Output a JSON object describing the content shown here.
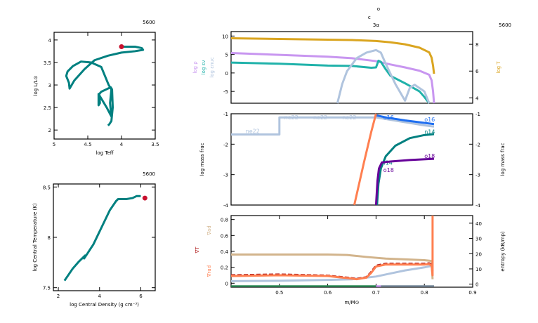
{
  "model_number": "5600",
  "chart_data": [
    {
      "id": "hr",
      "type": "line",
      "xlabel": "log Teff",
      "ylabel": "log L/L⊙",
      "xlim": [
        5,
        3.5
      ],
      "ylim": [
        1.8,
        4.17
      ],
      "xticks": [
        5,
        4.5,
        4,
        3.5
      ],
      "xticklabels": [
        "5",
        "4.5",
        "4",
        "3.5"
      ],
      "yticks": [
        2,
        2.5,
        3,
        3.5,
        4
      ],
      "yticklabels": [
        "2",
        "2.5",
        "3",
        "3.5",
        "4"
      ],
      "color": "#008080",
      "x": [
        4.2,
        4.18,
        4.15,
        4.13,
        4.14,
        4.16,
        4.3,
        4.33,
        4.32,
        4.34,
        4.34,
        4.22,
        4.15,
        4.17,
        4.15,
        4.19,
        4.3,
        4.45,
        4.6,
        4.72,
        4.8,
        4.82,
        4.78,
        4.77,
        4.7,
        4.55,
        4.4,
        4.2,
        4.0,
        3.8,
        3.68,
        3.7,
        3.8,
        4.0
      ],
      "y": [
        2.1,
        2.13,
        2.2,
        2.5,
        2.9,
        2.95,
        2.85,
        2.8,
        2.6,
        2.55,
        2.8,
        2.5,
        2.3,
        2.6,
        2.9,
        3.0,
        3.4,
        3.5,
        3.52,
        3.42,
        3.3,
        3.2,
        3.05,
        2.92,
        3.1,
        3.35,
        3.55,
        3.65,
        3.72,
        3.75,
        3.78,
        3.82,
        3.85,
        3.85
      ],
      "marker": {
        "x": 4.0,
        "y": 3.85,
        "color": "#c8102e"
      }
    },
    {
      "id": "center",
      "type": "line",
      "xlabel": "log Central Density (g cm⁻³)",
      "ylabel": "log Central Temperature (K)",
      "xlim": [
        1.76,
        6.7
      ],
      "ylim": [
        7.47,
        8.53
      ],
      "xticks": [
        2,
        4,
        6
      ],
      "xticklabels": [
        "2",
        "4",
        "6"
      ],
      "yticks": [
        7.5,
        8,
        8.5
      ],
      "yticklabels": [
        "7.5",
        "8",
        "8.5"
      ],
      "color": "#008080",
      "x": [
        2.3,
        2.7,
        3.0,
        3.2,
        3.3,
        3.25,
        3.35,
        3.7,
        4.1,
        4.5,
        4.8,
        4.9,
        5.3,
        5.6,
        5.8,
        6.0
      ],
      "y": [
        7.57,
        7.69,
        7.76,
        7.8,
        7.82,
        7.79,
        7.82,
        7.93,
        8.1,
        8.27,
        8.36,
        8.38,
        8.38,
        8.39,
        8.41,
        8.41
      ],
      "marker": {
        "x": 6.2,
        "y": 8.39,
        "color": "#c8102e"
      }
    },
    {
      "id": "profile-top",
      "type": "line",
      "xlim": [
        0.4,
        0.9
      ],
      "ylim": [
        -8.2,
        11.2
      ],
      "y2lim": [
        3.6,
        8.95
      ],
      "yticks": [
        -5,
        0,
        5,
        10
      ],
      "yticklabels": [
        "-5",
        "0",
        "5",
        "10"
      ],
      "y2ticks": [
        4,
        6,
        8
      ],
      "y2ticklabels": [
        "4",
        "6",
        "8"
      ],
      "ylabels": [
        {
          "text": "log ρ",
          "color": "#c896f0"
        },
        {
          "text": "log εν",
          "color": "#20b2aa"
        },
        {
          "text": "log εnuc",
          "color": "#b0c4de"
        }
      ],
      "y2label": {
        "text": "log T",
        "color": "#daa520"
      },
      "burning_labels": [
        {
          "text": "o",
          "x": 0.7
        },
        {
          "text": "c",
          "x": 0.69
        },
        {
          "text": "3α",
          "x": 0.7
        }
      ],
      "series": [
        {
          "axis": "y2",
          "color": "#daa520",
          "x": [
            0.4,
            0.5,
            0.6,
            0.65,
            0.7,
            0.73,
            0.76,
            0.79,
            0.81,
            0.815,
            0.818,
            0.82
          ],
          "y": [
            8.45,
            8.4,
            8.35,
            8.32,
            8.25,
            8.15,
            8.0,
            7.75,
            7.4,
            7.0,
            6.4,
            5.8
          ]
        },
        {
          "axis": "y",
          "color": "#c896f0",
          "x": [
            0.4,
            0.5,
            0.6,
            0.65,
            0.7,
            0.73,
            0.76,
            0.79,
            0.81,
            0.815,
            0.818,
            0.82
          ],
          "y": [
            5.4,
            4.9,
            4.4,
            4.0,
            3.2,
            2.3,
            1.5,
            0.6,
            -0.5,
            -2,
            -5,
            -8.2
          ]
        },
        {
          "axis": "y",
          "color": "#20b2aa",
          "x": [
            0.4,
            0.5,
            0.6,
            0.65,
            0.69,
            0.7,
            0.705,
            0.71,
            0.72,
            0.73,
            0.76,
            0.79,
            0.8,
            0.81
          ],
          "y": [
            2.8,
            2.5,
            2.0,
            1.9,
            1.4,
            1.5,
            3.3,
            3.0,
            1.0,
            -0.8,
            -2.8,
            -5,
            -6.5,
            -8.2
          ]
        },
        {
          "axis": "y",
          "color": "#b0c4de",
          "x": [
            0.62,
            0.63,
            0.64,
            0.66,
            0.68,
            0.7,
            0.71,
            0.72,
            0.74,
            0.76,
            0.77,
            0.78,
            0.8,
            0.81
          ],
          "y": [
            -8.2,
            -3,
            0.5,
            4,
            5.5,
            6.2,
            5.5,
            2.5,
            -3,
            -7.5,
            -4,
            -3.2,
            -5,
            -8.2
          ]
        }
      ]
    },
    {
      "id": "profile-middle",
      "type": "line",
      "xlim": [
        0.4,
        0.9
      ],
      "ylim": [
        -4,
        -1
      ],
      "yticks": [
        -4,
        -3,
        -2,
        -1
      ],
      "yticklabels": [
        "-4",
        "-3",
        "-2",
        "-1"
      ],
      "ylabel": "log mass frac",
      "y2label": "log mass frac",
      "series": [
        {
          "name": "ne22",
          "color": "#b0c4de",
          "x": [
            0.4,
            0.5,
            0.5,
            0.6,
            0.7,
            0.75,
            0.8,
            0.82
          ],
          "y": [
            -1.68,
            -1.68,
            -1.12,
            -1.12,
            -1.12,
            -1.25,
            -1.38,
            -1.42
          ],
          "labels": [
            0.43,
            0.51,
            0.57,
            0.63
          ]
        },
        {
          "name": "o16",
          "color": "#1e6ef0",
          "x": [
            0.7,
            0.72,
            0.76,
            0.8,
            0.82
          ],
          "y": [
            -1.05,
            -1.12,
            -1.22,
            -1.3,
            -1.34
          ],
          "labels": [
            0.715,
            0.8
          ]
        },
        {
          "name": "",
          "color": "#ff7f50",
          "x": [
            0.655,
            0.665,
            0.675,
            0.69,
            0.7
          ],
          "y": [
            -4,
            -3.3,
            -2.6,
            -1.6,
            -1
          ]
        },
        {
          "name": "n14",
          "color": "#008080",
          "x": [
            0.702,
            0.705,
            0.71,
            0.72,
            0.74,
            0.77,
            0.8,
            0.82
          ],
          "y": [
            -4,
            -3.3,
            -2.8,
            -2.4,
            -2.05,
            -1.8,
            -1.7,
            -1.67
          ],
          "labels": [
            0.712,
            0.8
          ]
        },
        {
          "name": "o18",
          "color": "#660099",
          "x": [
            0.7,
            0.703,
            0.706,
            0.712,
            0.73,
            0.77,
            0.82
          ],
          "y": [
            -4,
            -3.2,
            -2.8,
            -2.6,
            -2.57,
            -2.52,
            -2.48
          ],
          "labels": [
            0.715,
            0.8
          ]
        }
      ]
    },
    {
      "id": "profile-bottom",
      "type": "line",
      "xlabel": "m/M⊙",
      "xlim": [
        0.4,
        0.9
      ],
      "ylim": [
        -0.05,
        0.85
      ],
      "y2lim": [
        -2,
        45
      ],
      "xticks": [
        0.5,
        0.6,
        0.7,
        0.8,
        0.9
      ],
      "xticklabels": [
        "0.5",
        "0.6",
        "0.7",
        "0.8",
        "0.9"
      ],
      "yticks": [
        0,
        0.2,
        0.4,
        0.6,
        0.8
      ],
      "yticklabels": [
        "0",
        "0.2",
        "0.4",
        "0.6",
        "0.8"
      ],
      "y2ticks": [
        0,
        10,
        20,
        30,
        40
      ],
      "y2ticklabels": [
        "0",
        "10",
        "20",
        "30",
        "40"
      ],
      "ylabels": [
        {
          "text": "∇ad",
          "color": "#d2b48c"
        },
        {
          "text": "∇T",
          "color": "#b22222"
        },
        {
          "text": "∇rad",
          "color": "#ff7f50"
        }
      ],
      "y2label": {
        "text": "entropy (kB/mp)",
        "color": "#000000"
      },
      "series": [
        {
          "axis": "y",
          "color": "#d2b48c",
          "x": [
            0.4,
            0.5,
            0.6,
            0.64,
            0.68,
            0.72,
            0.8,
            0.815,
            0.817
          ],
          "y": [
            0.36,
            0.36,
            0.36,
            0.355,
            0.33,
            0.31,
            0.29,
            0.28,
            0.05
          ]
        },
        {
          "axis": "y2",
          "color": "#b0c4de",
          "x": [
            0.4,
            0.5,
            0.6,
            0.65,
            0.7,
            0.73,
            0.76,
            0.8,
            0.815
          ],
          "y": [
            2,
            2.2,
            2.8,
            3.2,
            5,
            7,
            9,
            11,
            12
          ]
        },
        {
          "axis": "y",
          "color": "#b22222",
          "dash": true,
          "x": [
            0.4,
            0.5,
            0.6,
            0.64,
            0.66,
            0.68,
            0.69,
            0.7,
            0.72,
            0.8,
            0.81,
            0.815,
            0.817
          ],
          "y": [
            0.1,
            0.11,
            0.095,
            0.07,
            0.055,
            0.075,
            0.14,
            0.22,
            0.245,
            0.245,
            0.25,
            0.23,
            0.15
          ]
        },
        {
          "axis": "y",
          "color": "#ff7f50",
          "x": [
            0.4,
            0.5,
            0.6,
            0.64,
            0.66,
            0.68,
            0.69,
            0.7,
            0.72,
            0.8,
            0.81,
            0.815,
            0.817,
            0.817
          ],
          "y": [
            0.09,
            0.1,
            0.09,
            0.065,
            0.05,
            0.07,
            0.13,
            0.21,
            0.235,
            0.235,
            0.24,
            0.22,
            0.1,
            0.85
          ]
        }
      ],
      "mixing_bar": [
        {
          "from": 0.4,
          "to": 0.7,
          "color": "#2e8b57"
        },
        {
          "from": 0.7,
          "to": 0.71,
          "color": "#c896f0"
        },
        {
          "from": 0.71,
          "to": 0.82,
          "color": "#778899"
        }
      ]
    }
  ]
}
